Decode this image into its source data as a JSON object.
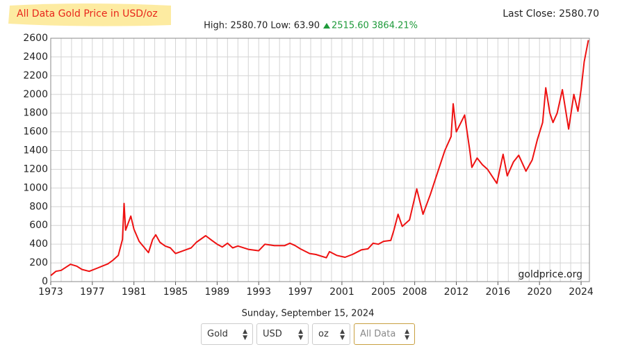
{
  "header": {
    "title": "All Data Gold Price in USD/oz",
    "high_low": "High: 2580.70 Low: 63.90",
    "change": "2515.60 3864.21%",
    "last_close": "Last Close: 2580.70"
  },
  "chart_data": {
    "type": "line",
    "watermark": "goldprice.org",
    "x": [
      1973.0,
      1973.5,
      1974.0,
      1974.9,
      1975.5,
      1976.0,
      1976.7,
      1977.5,
      1978.5,
      1979.0,
      1979.5,
      1979.9,
      1980.05,
      1980.2,
      1980.7,
      1981.0,
      1981.5,
      1982.4,
      1982.8,
      1983.1,
      1983.5,
      1984.0,
      1984.5,
      1985.0,
      1985.5,
      1986.0,
      1986.5,
      1987.0,
      1987.9,
      1988.5,
      1989.0,
      1989.5,
      1990.0,
      1990.5,
      1991.0,
      1992.0,
      1993.0,
      1993.6,
      1994.5,
      1995.5,
      1996.0,
      1996.5,
      1997.0,
      1997.9,
      1998.5,
      1999.5,
      1999.8,
      2000.5,
      2001.3,
      2002.0,
      2002.9,
      2003.5,
      2004.0,
      2004.5,
      2005.0,
      2005.7,
      2006.0,
      2006.4,
      2006.8,
      2007.5,
      2008.2,
      2008.8,
      2009.5,
      2010.0,
      2010.9,
      2011.5,
      2011.7,
      2012.0,
      2012.8,
      2013.3,
      2013.5,
      2014.0,
      2014.5,
      2015.0,
      2015.9,
      2016.5,
      2016.9,
      2017.5,
      2018.0,
      2018.7,
      2019.3,
      2019.8,
      2020.3,
      2020.6,
      2021.0,
      2021.3,
      2021.7,
      2022.2,
      2022.8,
      2023.3,
      2023.7,
      2024.0,
      2024.3,
      2024.7
    ],
    "series": [
      {
        "name": "Gold",
        "color": "#ee1111",
        "values": [
          65,
          110,
          120,
          185,
          165,
          130,
          110,
          145,
          190,
          230,
          280,
          450,
          835,
          550,
          700,
          560,
          430,
          310,
          450,
          500,
          420,
          380,
          360,
          300,
          320,
          340,
          360,
          420,
          490,
          440,
          400,
          370,
          410,
          360,
          380,
          345,
          330,
          400,
          385,
          385,
          410,
          385,
          350,
          300,
          290,
          255,
          320,
          280,
          260,
          290,
          340,
          350,
          410,
          400,
          430,
          440,
          550,
          720,
          590,
          660,
          990,
          720,
          930,
          1100,
          1400,
          1550,
          1900,
          1600,
          1780,
          1400,
          1220,
          1320,
          1250,
          1200,
          1050,
          1360,
          1130,
          1280,
          1350,
          1180,
          1300,
          1520,
          1700,
          2070,
          1800,
          1700,
          1800,
          2050,
          1630,
          2000,
          1820,
          2050,
          2350,
          2580
        ]
      }
    ],
    "xlim": [
      1973,
      2024.8
    ],
    "xticks": [
      1973,
      1977,
      1981,
      1985,
      1989,
      1993,
      1997,
      2001,
      2005,
      2008,
      2012,
      2016,
      2020,
      2024
    ],
    "xgrid": [
      1973,
      1974,
      1975,
      1976,
      1977,
      1978,
      1979,
      1980,
      1981,
      1982,
      1983,
      1984,
      1985,
      1986,
      1987,
      1988,
      1989,
      1990,
      1991,
      1992,
      1993,
      1994,
      1995,
      1996,
      1997,
      1998,
      1999,
      2000,
      2001,
      2002,
      2003,
      2004,
      2005,
      2006,
      2007,
      2008,
      2009,
      2010,
      2011,
      2012,
      2013,
      2014,
      2015,
      2016,
      2017,
      2018,
      2019,
      2020,
      2021,
      2022,
      2023,
      2024
    ],
    "ylim": [
      0,
      2600
    ],
    "yticks": [
      0,
      200,
      400,
      600,
      800,
      1000,
      1200,
      1400,
      1600,
      1800,
      2000,
      2200,
      2400,
      2600
    ],
    "grid": true
  },
  "footer": {
    "date": "Sunday, September 15, 2024",
    "controls": [
      "Gold",
      "USD",
      "oz",
      "All Data"
    ]
  }
}
